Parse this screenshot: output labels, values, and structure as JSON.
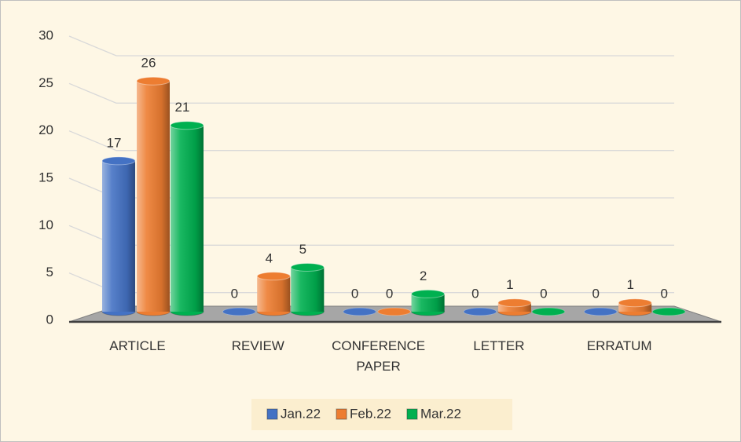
{
  "chart_data": {
    "type": "bar",
    "categories": [
      "ARTICLE",
      "REVIEW",
      "CONFERENCE PAPER",
      "LETTER",
      "ERRATUM"
    ],
    "series": [
      {
        "name": "Jan.22",
        "color": "#4472c4",
        "values": [
          17,
          0,
          0,
          0,
          0
        ]
      },
      {
        "name": "Feb.22",
        "color": "#ed7d31",
        "values": [
          26,
          4,
          0,
          1,
          1
        ]
      },
      {
        "name": "Mar.22",
        "color": "#00b050",
        "values": [
          21,
          5,
          2,
          0,
          0
        ]
      }
    ],
    "ylim": [
      0,
      30
    ],
    "yticks": [
      0,
      5,
      10,
      15,
      20,
      25,
      30
    ],
    "grid": true,
    "legend": "bottom"
  }
}
